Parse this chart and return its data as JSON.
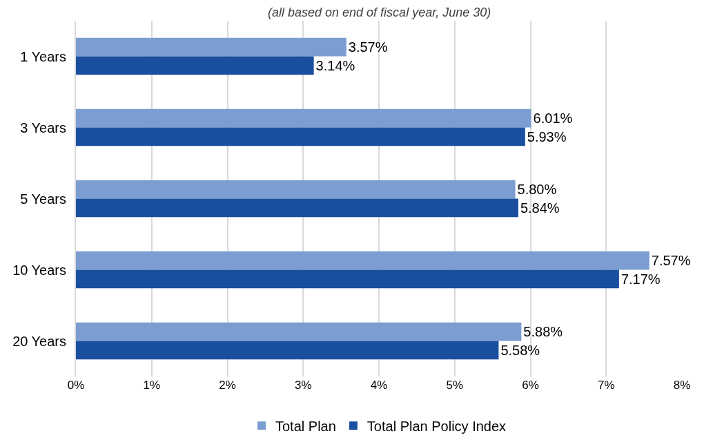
{
  "chart_data": {
    "type": "bar",
    "orientation": "horizontal",
    "subtitle": "(all based on end of fiscal year, June 30)",
    "categories": [
      "1 Years",
      "3 Years",
      "5 Years",
      "10 Years",
      "20 Years"
    ],
    "series": [
      {
        "name": "Total Plan",
        "color": "#7b9dd2",
        "values": [
          3.57,
          6.01,
          5.8,
          7.57,
          5.88
        ],
        "value_labels": [
          "3.57%",
          "6.01%",
          "5.80%",
          "7.57%",
          "5.88%"
        ]
      },
      {
        "name": "Total Plan Policy Index",
        "color": "#1a4fa0",
        "values": [
          3.14,
          5.93,
          5.84,
          7.17,
          5.58
        ],
        "value_labels": [
          "3.14%",
          "5.93%",
          "5.84%",
          "7.17%",
          "5.58%"
        ]
      }
    ],
    "xlim": [
      0,
      8
    ],
    "xticks": [
      {
        "value": 0,
        "label": "0%"
      },
      {
        "value": 1,
        "label": "1%"
      },
      {
        "value": 2,
        "label": "2%"
      },
      {
        "value": 3,
        "label": "3%"
      },
      {
        "value": 4,
        "label": "4%"
      },
      {
        "value": 5,
        "label": "5%"
      },
      {
        "value": 6,
        "label": "6%"
      },
      {
        "value": 7,
        "label": "7%"
      },
      {
        "value": 8,
        "label": "8%"
      }
    ],
    "grid": "x",
    "legend": "bottom"
  }
}
